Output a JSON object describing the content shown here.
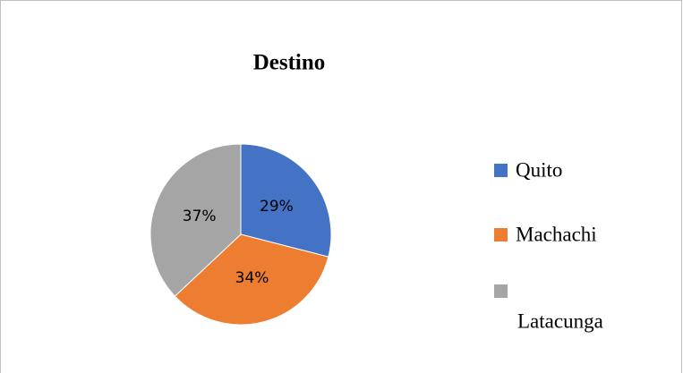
{
  "chart_data": {
    "type": "pie",
    "title": "Destino",
    "categories": [
      "Quito",
      "Machachi",
      "Latacunga"
    ],
    "values": [
      29,
      34,
      37
    ],
    "value_labels": [
      "29%",
      "34%",
      "37%"
    ],
    "colors": [
      "#4472c4",
      "#ed7d31",
      "#a5a5a5"
    ],
    "legend": "right"
  }
}
